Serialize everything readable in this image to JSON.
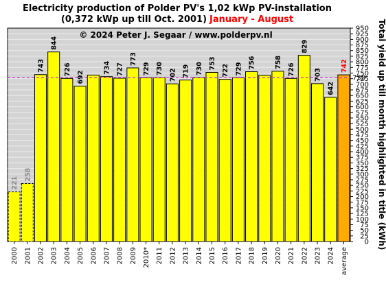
{
  "title": {
    "line1": "Electricity production  of Polder  PV's  1,02 kWp PV-installation",
    "line2_main": "(0,372 kWp up till Oct. 2001)",
    "line2_period": "January - August"
  },
  "colors": {
    "plot_bg": "#d4d4d4",
    "bar": "#ffff00",
    "average_bar": "#ffaa00",
    "avg_line": "#cc33cc",
    "grey_label": "#888888",
    "period_red": "#ff0000",
    "avg_label_red": "#ff0000",
    "avg_line_label": "#cc33cc"
  },
  "chart_data": {
    "type": "bar",
    "copyright": "© 2024 Peter J. Segaar / www.polderpv.nl",
    "categories": [
      "2000",
      "2001",
      "2002",
      "2003",
      "2004",
      "2005",
      "2006",
      "2007",
      "2008",
      "2009",
      "2010*",
      "2011",
      "2012",
      "2013",
      "2014",
      "2015",
      "2016",
      "2017",
      "2018",
      "2019",
      "2020",
      "2021",
      "2022",
      "2023",
      "2024",
      "average"
    ],
    "values": [
      221,
      258,
      743,
      844,
      726,
      692,
      741,
      734,
      727,
      773,
      729,
      730,
      702,
      719,
      730,
      753,
      722,
      729,
      756,
      740,
      758,
      726,
      829,
      703,
      642,
      742
    ],
    "value_labels": [
      "221",
      "258",
      "743",
      "844",
      "726",
      "692",
      "",
      "734",
      "727",
      "773",
      "729",
      "730",
      "702",
      "719",
      "730",
      "753",
      "722",
      "729",
      "756",
      "",
      "758",
      "726",
      "829",
      "703",
      "642",
      "742"
    ],
    "dashed_categories": [
      "2000",
      "2001"
    ],
    "ylabel": "Total yield up till month highlighted in title (kWh)",
    "ylim": [
      0,
      950
    ],
    "y_ticks": [
      0,
      25,
      50,
      75,
      100,
      125,
      150,
      175,
      200,
      225,
      250,
      275,
      300,
      325,
      350,
      375,
      400,
      425,
      450,
      475,
      500,
      525,
      550,
      575,
      600,
      625,
      650,
      675,
      700,
      725,
      750,
      775,
      800,
      825,
      850,
      875,
      900,
      925,
      950
    ],
    "y_tick_labels": [
      "0",
      "25",
      "50",
      "75",
      "100",
      "125",
      "150",
      "175",
      "200",
      "225",
      "250",
      "275",
      "300",
      "325",
      "350",
      "375",
      "400",
      "425",
      "450",
      "475",
      "500",
      "525",
      "550",
      "575",
      "600",
      "625",
      "650",
      "675",
      "700",
      "725",
      "750",
      "775",
      "800",
      "825",
      "850",
      "875",
      "900",
      "925",
      "950"
    ],
    "reference_line": {
      "value": 730,
      "label": "730"
    }
  }
}
